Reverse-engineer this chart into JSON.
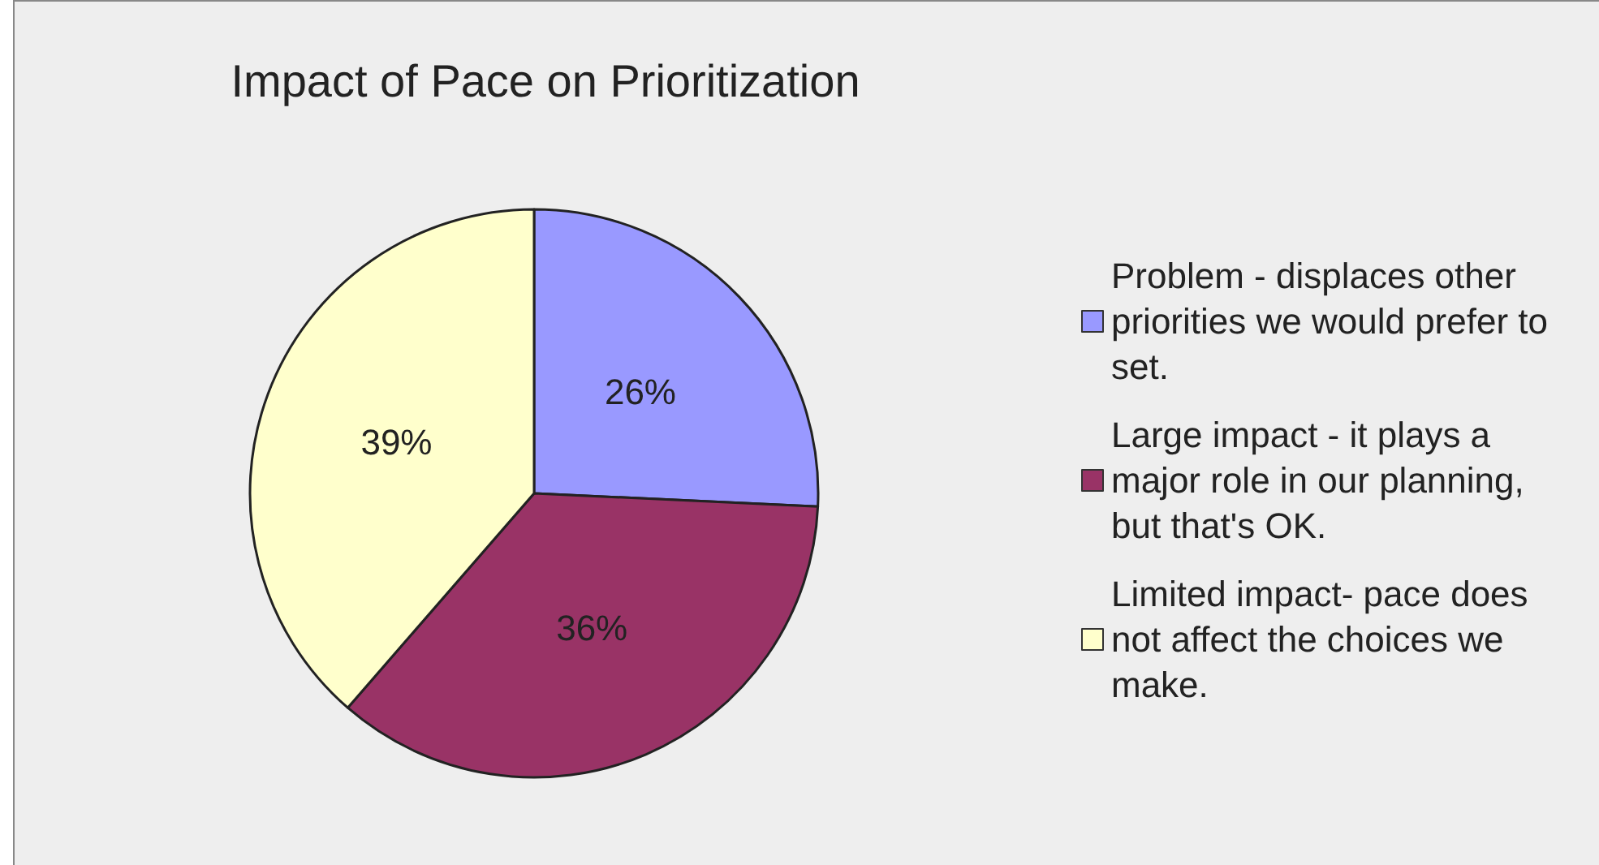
{
  "chart_data": {
    "type": "pie",
    "title": "Impact of Pace on Prioritization",
    "categories": [
      "Problem - displaces other priorities we would prefer to set.",
      "Large impact - it plays a major role in our planning, but that's OK.",
      "Limited impact- pace does not affect the choices we make."
    ],
    "values": [
      26,
      36,
      39
    ],
    "value_labels": [
      "26%",
      "36%",
      "39%"
    ],
    "colors": [
      "#9999ff",
      "#993366",
      "#ffffcc"
    ],
    "legend": "right"
  }
}
